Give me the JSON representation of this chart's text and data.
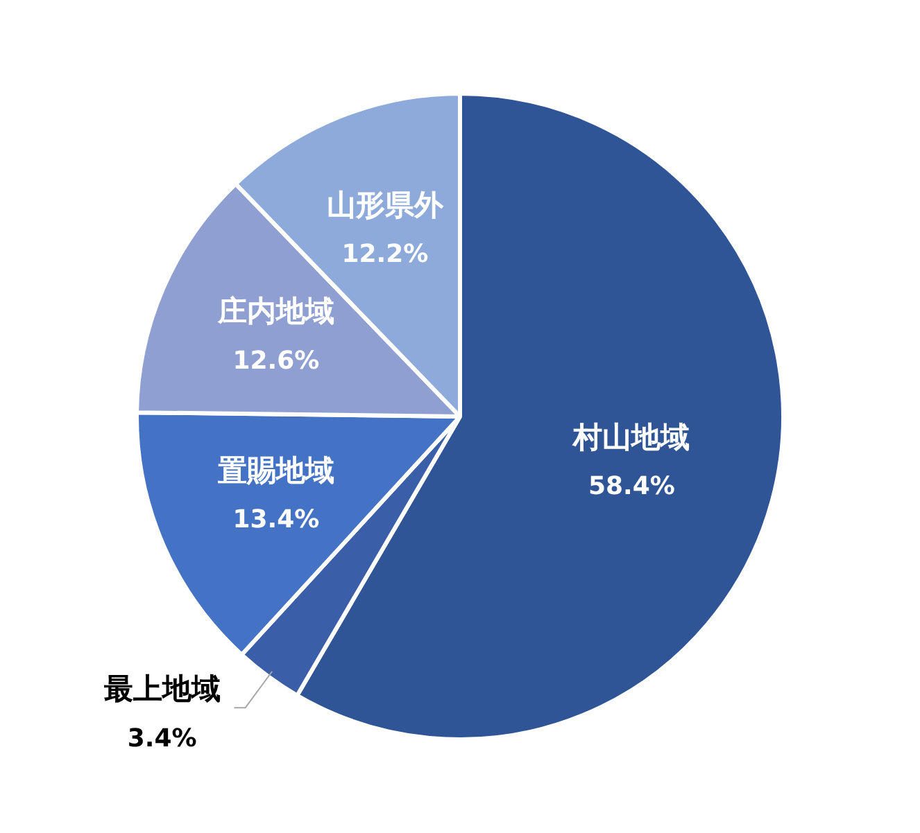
{
  "chart_data": {
    "type": "pie",
    "categories": [
      "村山地域",
      "最上地域",
      "置賜地域",
      "庄内地域",
      "山形県外"
    ],
    "values": [
      58.4,
      3.4,
      13.4,
      12.6,
      12.2
    ],
    "value_labels": [
      "58.4%",
      "3.4%",
      "13.4%",
      "12.6%",
      "12.2%"
    ],
    "colors": [
      "#2f5597",
      "#3a5ea8",
      "#4472c4",
      "#8f9fd2",
      "#8eaadb"
    ],
    "legend": false
  }
}
